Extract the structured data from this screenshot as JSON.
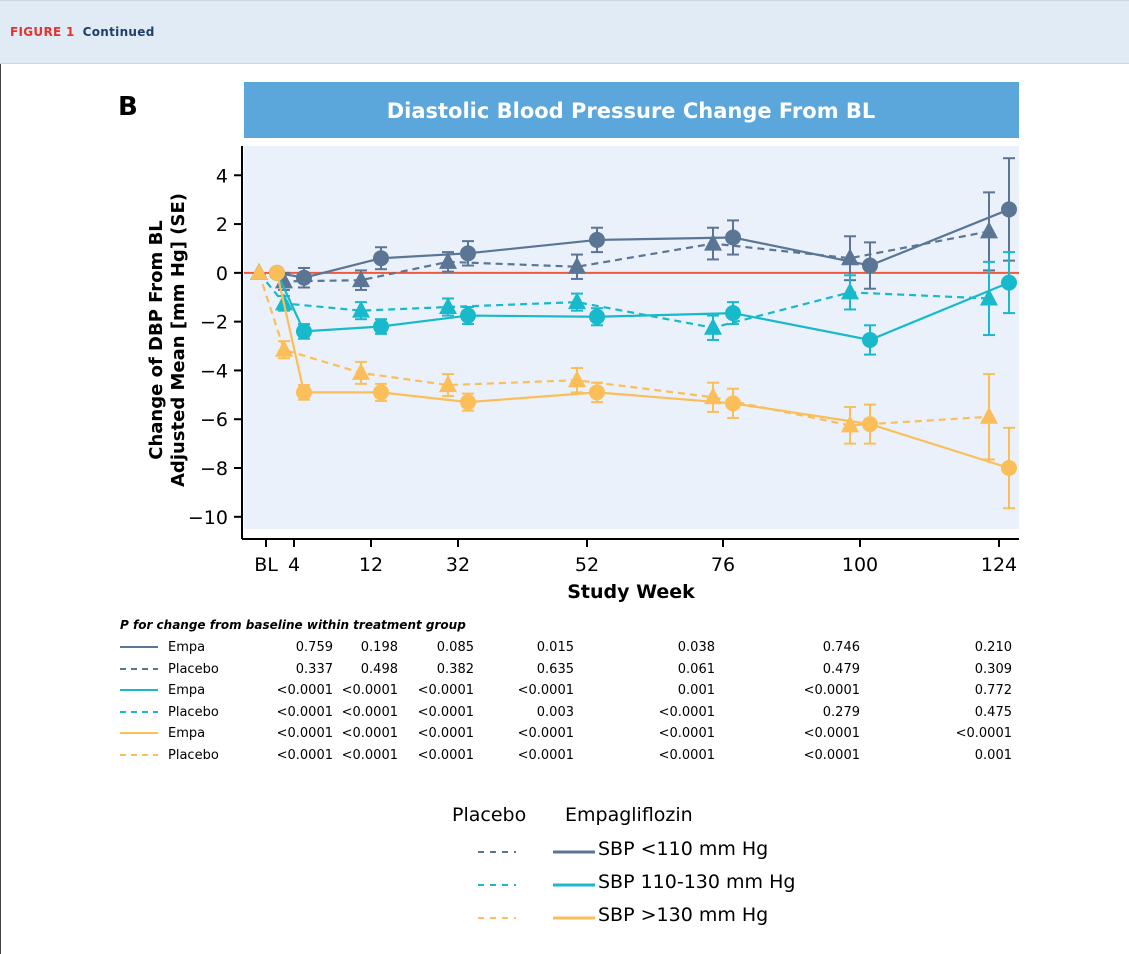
{
  "figure": {
    "number_label": "FIGURE 1",
    "continued_label": "Continued"
  },
  "panel_letter": "B",
  "chart_data": {
    "type": "line",
    "title": "Diastolic Blood Pressure Change From BL",
    "xlabel": "Study Week",
    "ylabel_line1": "Change of DBP From BL",
    "ylabel_line2": "Adjusted Mean [mm Hg] (SE)",
    "categories": [
      "BL",
      "4",
      "12",
      "32",
      "52",
      "76",
      "100",
      "124"
    ],
    "y_ticks": [
      4,
      2,
      0,
      -2,
      -4,
      -6,
      -8,
      -10
    ],
    "y_tick_labels": [
      "4",
      "2",
      "0",
      "−2",
      "−4",
      "−6",
      "−8",
      "−10"
    ],
    "ylim": [
      -10.5,
      5.2
    ],
    "reference_line": 0,
    "colors": {
      "sbp_lt110": "#5b7594",
      "sbp_110_130": "#17b9ca",
      "sbp_gt130": "#fbbe59",
      "zero_line": "#ef5a3c",
      "title_band": "#5ba6da",
      "plot_bg": "#eaf1fa"
    },
    "series": [
      {
        "name": "SBP <110 mm Hg",
        "group": "Empagliflozin",
        "color": "#5b7594",
        "dash": false,
        "marker": "circle",
        "values": [
          0,
          -0.2,
          0.6,
          0.8,
          1.35,
          1.45,
          0.3,
          2.6
        ],
        "errors": [
          0,
          0.4,
          0.45,
          0.5,
          0.5,
          0.7,
          0.95,
          2.1
        ]
      },
      {
        "name": "SBP <110 mm Hg",
        "group": "Placebo",
        "color": "#5b7594",
        "dash": true,
        "marker": "triangle",
        "values": [
          0,
          -0.35,
          -0.3,
          0.45,
          0.25,
          1.2,
          0.6,
          1.7
        ],
        "errors": [
          0,
          0.35,
          0.4,
          0.4,
          0.5,
          0.65,
          0.9,
          1.6
        ]
      },
      {
        "name": "SBP 110-130 mm Hg",
        "group": "Empagliflozin",
        "color": "#17b9ca",
        "dash": false,
        "marker": "circle",
        "values": [
          0,
          -2.4,
          -2.2,
          -1.75,
          -1.8,
          -1.65,
          -2.75,
          -0.4
        ],
        "errors": [
          0,
          0.3,
          0.3,
          0.35,
          0.35,
          0.45,
          0.6,
          1.25
        ]
      },
      {
        "name": "SBP 110-130 mm Hg",
        "group": "Placebo",
        "color": "#17b9ca",
        "dash": true,
        "marker": "triangle",
        "values": [
          0,
          -1.25,
          -1.55,
          -1.4,
          -1.2,
          -2.25,
          -0.8,
          -1.05
        ],
        "errors": [
          0,
          0.3,
          0.35,
          0.35,
          0.35,
          0.5,
          0.7,
          1.5
        ]
      },
      {
        "name": "SBP >130 mm Hg",
        "group": "Empagliflozin",
        "color": "#fbbe59",
        "dash": false,
        "marker": "circle",
        "values": [
          0,
          -4.9,
          -4.9,
          -5.3,
          -4.9,
          -5.35,
          -6.2,
          -8.0
        ],
        "errors": [
          0,
          0.3,
          0.35,
          0.35,
          0.4,
          0.6,
          0.8,
          1.65
        ]
      },
      {
        "name": "SBP >130 mm Hg",
        "group": "Placebo",
        "color": "#fbbe59",
        "dash": true,
        "marker": "triangle",
        "values": [
          0,
          -3.15,
          -4.1,
          -4.6,
          -4.4,
          -5.1,
          -6.25,
          -5.9
        ],
        "errors": [
          0,
          0.35,
          0.45,
          0.45,
          0.5,
          0.6,
          0.75,
          1.75
        ]
      }
    ]
  },
  "p_table": {
    "title": "P for change from baseline within treatment group",
    "rows": [
      {
        "name": "Empa",
        "color": "#5b7594",
        "dash": false,
        "values": [
          "0.759",
          "0.198",
          "0.085",
          "0.015",
          "0.038",
          "0.746",
          "0.210"
        ]
      },
      {
        "name": "Placebo",
        "color": "#5b7594",
        "dash": true,
        "values": [
          "0.337",
          "0.498",
          "0.382",
          "0.635",
          "0.061",
          "0.479",
          "0.309"
        ]
      },
      {
        "name": "Empa",
        "color": "#17b9ca",
        "dash": false,
        "values": [
          "<0.0001",
          "<0.0001",
          "<0.0001",
          "<0.0001",
          "0.001",
          "<0.0001",
          "0.772"
        ]
      },
      {
        "name": "Placebo",
        "color": "#17b9ca",
        "dash": true,
        "values": [
          "<0.0001",
          "<0.0001",
          "<0.0001",
          "0.003",
          "<0.0001",
          "0.279",
          "0.475"
        ]
      },
      {
        "name": "Empa",
        "color": "#fbbe59",
        "dash": false,
        "values": [
          "<0.0001",
          "<0.0001",
          "<0.0001",
          "<0.0001",
          "<0.0001",
          "<0.0001",
          "<0.0001"
        ]
      },
      {
        "name": "Placebo",
        "color": "#fbbe59",
        "dash": true,
        "values": [
          "<0.0001",
          "<0.0001",
          "<0.0001",
          "<0.0001",
          "<0.0001",
          "<0.0001",
          "0.001"
        ]
      }
    ]
  },
  "legend": {
    "placebo_header": "Placebo",
    "empa_header": "Empagliflozin",
    "items": [
      {
        "label": "SBP <110 mm Hg",
        "color": "#5b7594"
      },
      {
        "label": "SBP 110-130 mm Hg",
        "color": "#17b9ca"
      },
      {
        "label": "SBP >130 mm Hg",
        "color": "#fbbe59"
      }
    ]
  }
}
